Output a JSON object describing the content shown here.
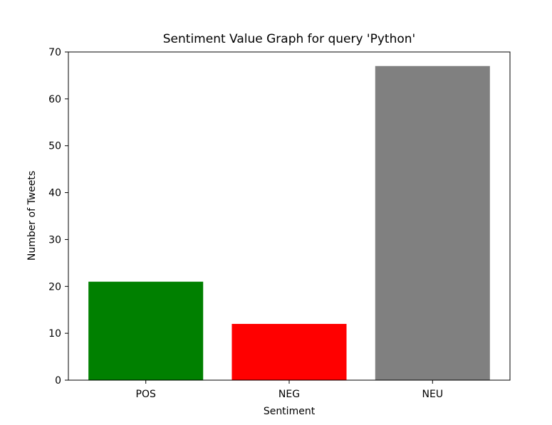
{
  "chart_data": {
    "type": "bar",
    "title": "Sentiment Value Graph for query 'Python'",
    "xlabel": "Sentiment",
    "ylabel": "Number of Tweets",
    "categories": [
      "POS",
      "NEG",
      "NEU"
    ],
    "values": [
      21,
      12,
      67
    ],
    "colors": [
      "#008000",
      "#ff0000",
      "#808080"
    ],
    "ylim": [
      0,
      70
    ],
    "yticks": [
      0,
      10,
      20,
      30,
      40,
      50,
      60,
      70
    ],
    "grid": false
  }
}
